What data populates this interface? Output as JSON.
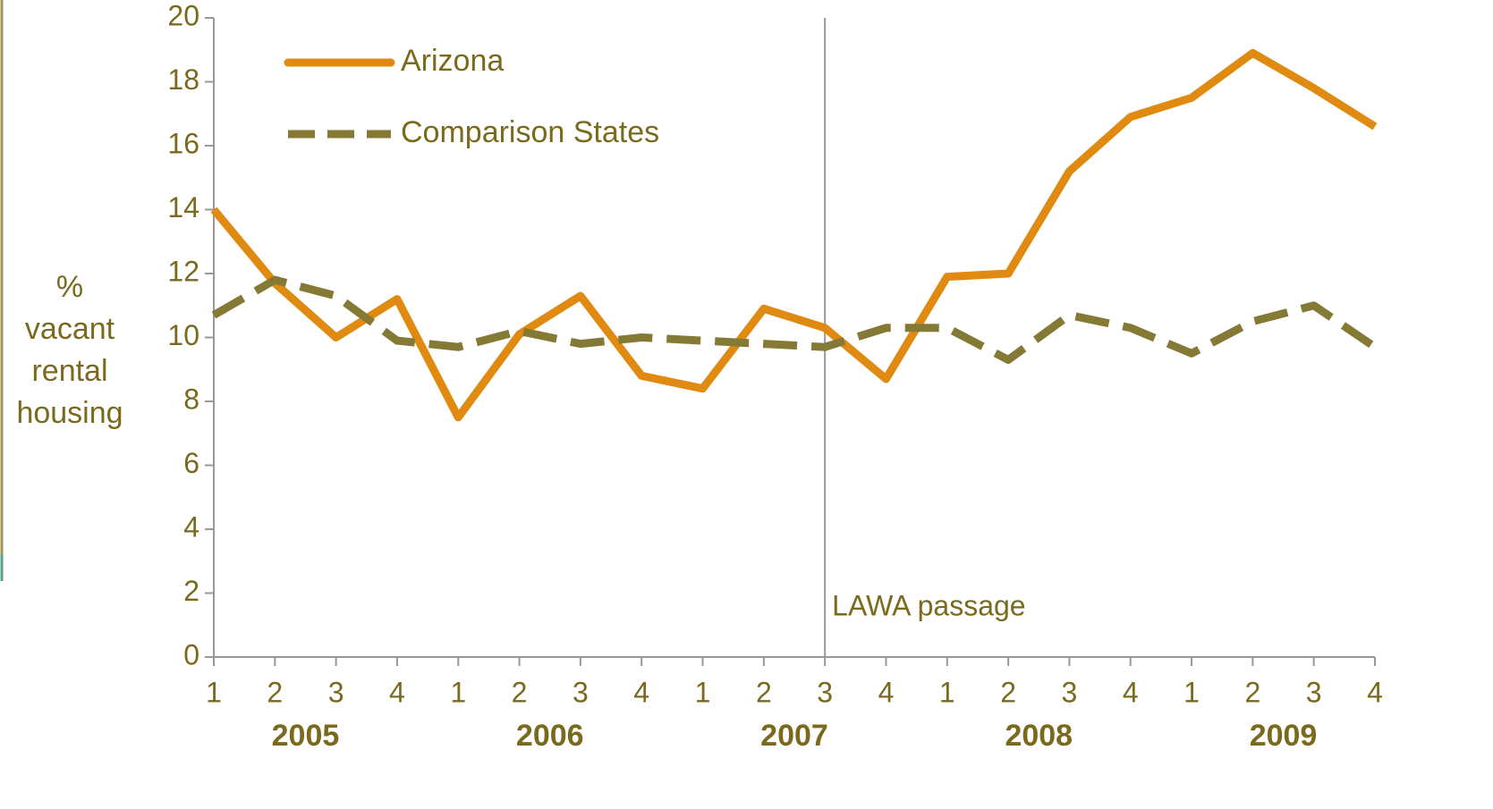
{
  "chart_data": {
    "type": "line",
    "y_label_lines": [
      "%",
      "vacant",
      "rental",
      "housing"
    ],
    "categories": [
      "1",
      "2",
      "3",
      "4",
      "1",
      "2",
      "3",
      "4",
      "1",
      "2",
      "3",
      "4",
      "1",
      "2",
      "3",
      "4",
      "1",
      "2",
      "3",
      "4"
    ],
    "years": [
      "2005",
      "2006",
      "2007",
      "2008",
      "2009"
    ],
    "series": [
      {
        "name": "Arizona",
        "color": "#e08a12",
        "dash": false,
        "values": [
          14.0,
          11.7,
          10.0,
          11.2,
          7.5,
          10.1,
          11.3,
          8.8,
          8.4,
          10.9,
          10.3,
          8.7,
          11.9,
          12.0,
          15.2,
          16.9,
          17.5,
          18.9,
          17.8,
          16.6
        ]
      },
      {
        "name": "Comparison States",
        "color": "#857a35",
        "dash": true,
        "values": [
          10.7,
          11.8,
          11.3,
          9.9,
          9.7,
          10.2,
          9.8,
          10.0,
          9.9,
          9.8,
          9.7,
          10.3,
          10.3,
          9.3,
          10.7,
          10.3,
          9.5,
          10.5,
          11.0,
          9.7
        ]
      }
    ],
    "annotation": "LAWA passage",
    "ylim": [
      0,
      20
    ],
    "yticks": [
      0,
      2,
      4,
      6,
      8,
      10,
      12,
      14,
      16,
      18,
      20
    ]
  }
}
